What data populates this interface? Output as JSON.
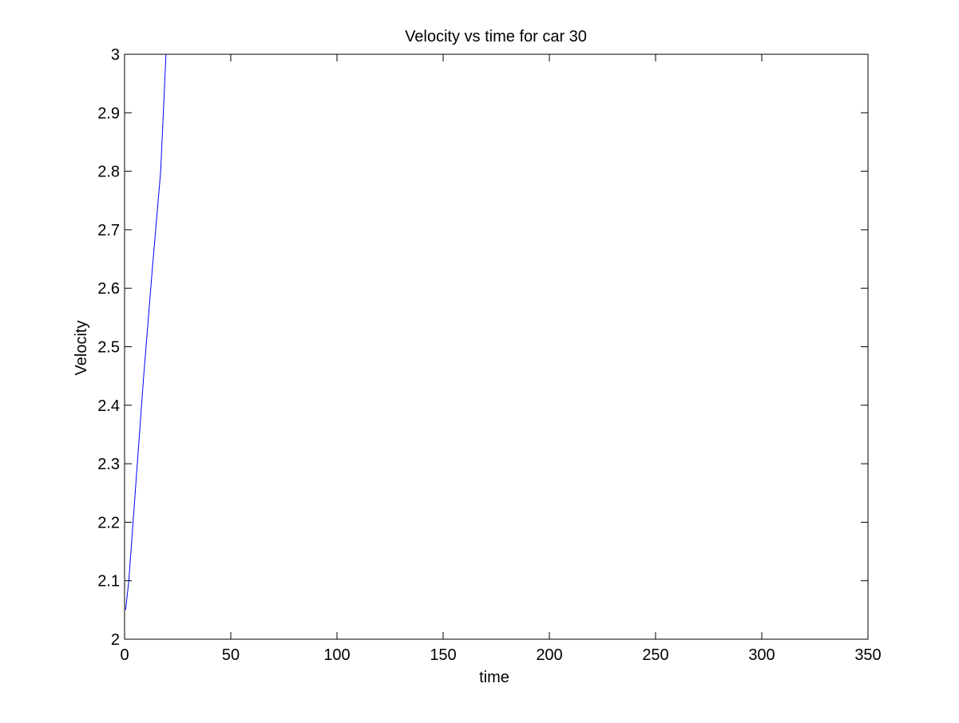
{
  "chart_data": {
    "type": "line",
    "title": "Velocity vs time for car 30",
    "xlabel": "time",
    "ylabel": "Velocity",
    "xlim": [
      0,
      350
    ],
    "ylim": [
      2,
      3
    ],
    "xticks": [
      0,
      50,
      100,
      150,
      200,
      250,
      300,
      350
    ],
    "yticks": [
      2,
      2.1,
      2.2,
      2.3,
      2.4,
      2.5,
      2.6,
      2.7,
      2.8,
      2.9,
      3
    ],
    "xtick_labels": [
      "0",
      "50",
      "100",
      "150",
      "200",
      "250",
      "300",
      "350"
    ],
    "ytick_labels": [
      "2",
      "2.1",
      "2.2",
      "2.3",
      "2.4",
      "2.5",
      "2.6",
      "2.7",
      "2.8",
      "2.9",
      "3"
    ],
    "grid": false,
    "line_color": "#0000ff",
    "series": [
      {
        "x": [
          0.5,
          2,
          5,
          9,
          13,
          17,
          19.5
        ],
        "y": [
          2.05,
          2.1,
          2.25,
          2.45,
          2.63,
          2.8,
          3.0
        ]
      }
    ]
  }
}
